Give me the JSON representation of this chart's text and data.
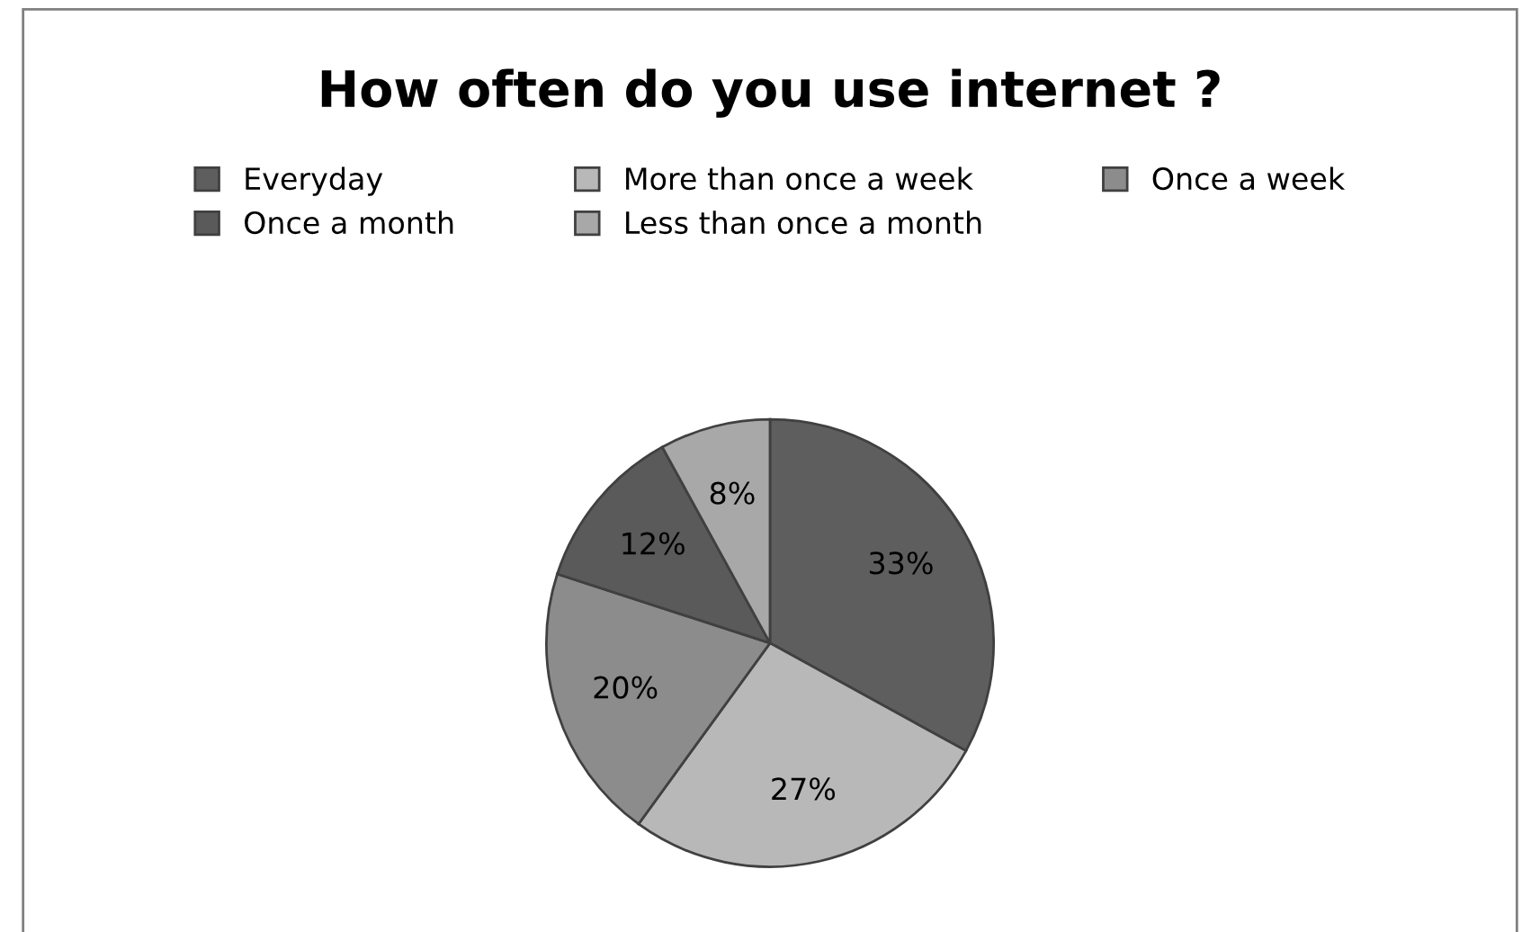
{
  "chart_data": {
    "type": "pie",
    "title": "How often do you use internet ?",
    "categories": [
      "Everyday",
      "More than once a week",
      "Once a week",
      "Once a month",
      "Less than once a month"
    ],
    "values": [
      33,
      27,
      20,
      12,
      8
    ],
    "value_labels": [
      "33%",
      "27%",
      "20%",
      "12%",
      "8%"
    ],
    "colors": [
      "#5e5e5e",
      "#b8b8b8",
      "#8c8c8c",
      "#5a5a5a",
      "#a8a8a8"
    ],
    "legend": "top"
  }
}
